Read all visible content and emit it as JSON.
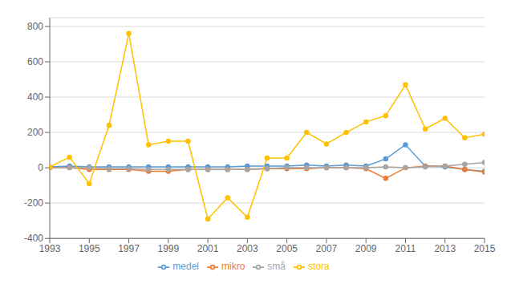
{
  "chart_data": {
    "type": "line",
    "x": [
      1993,
      1994,
      1995,
      1996,
      1997,
      1998,
      1999,
      2000,
      2001,
      2002,
      2003,
      2004,
      2005,
      2006,
      2007,
      2008,
      2009,
      2010,
      2011,
      2012,
      2013,
      2014,
      2015
    ],
    "series": [
      {
        "name": "medel",
        "color": "#5b9bd5",
        "marker": "circle",
        "values": [
          5,
          10,
          5,
          5,
          5,
          5,
          5,
          5,
          5,
          5,
          10,
          10,
          10,
          15,
          10,
          15,
          10,
          50,
          130,
          10,
          5,
          -10,
          -20
        ]
      },
      {
        "name": "mikro",
        "color": "#ed7d31",
        "marker": "circle",
        "values": [
          0,
          0,
          -10,
          -10,
          -10,
          -20,
          -20,
          -10,
          -10,
          -10,
          -10,
          -5,
          -5,
          -5,
          0,
          0,
          -5,
          -60,
          0,
          10,
          10,
          -10,
          -25
        ]
      },
      {
        "name": "små",
        "color": "#a5a5a5",
        "marker": "circle",
        "values": [
          0,
          0,
          0,
          -5,
          -5,
          -10,
          -10,
          -10,
          -10,
          -10,
          -10,
          -5,
          0,
          0,
          0,
          0,
          0,
          5,
          0,
          5,
          10,
          20,
          30
        ]
      },
      {
        "name": "stora",
        "color": "#ffc000",
        "marker": "circle",
        "values": [
          5,
          60,
          -90,
          240,
          760,
          130,
          150,
          150,
          -290,
          -170,
          -280,
          55,
          55,
          200,
          135,
          200,
          260,
          295,
          470,
          220,
          280,
          170,
          190
        ]
      }
    ],
    "xlim": [
      1993,
      2015
    ],
    "xticks": [
      1993,
      1995,
      1997,
      1999,
      2001,
      2003,
      2005,
      2007,
      2009,
      2011,
      2013,
      2015
    ],
    "ylim": [
      -400,
      850
    ],
    "yticks": [
      -400,
      -200,
      0,
      200,
      400,
      600,
      800
    ],
    "grid": true,
    "legend": "bottom"
  }
}
